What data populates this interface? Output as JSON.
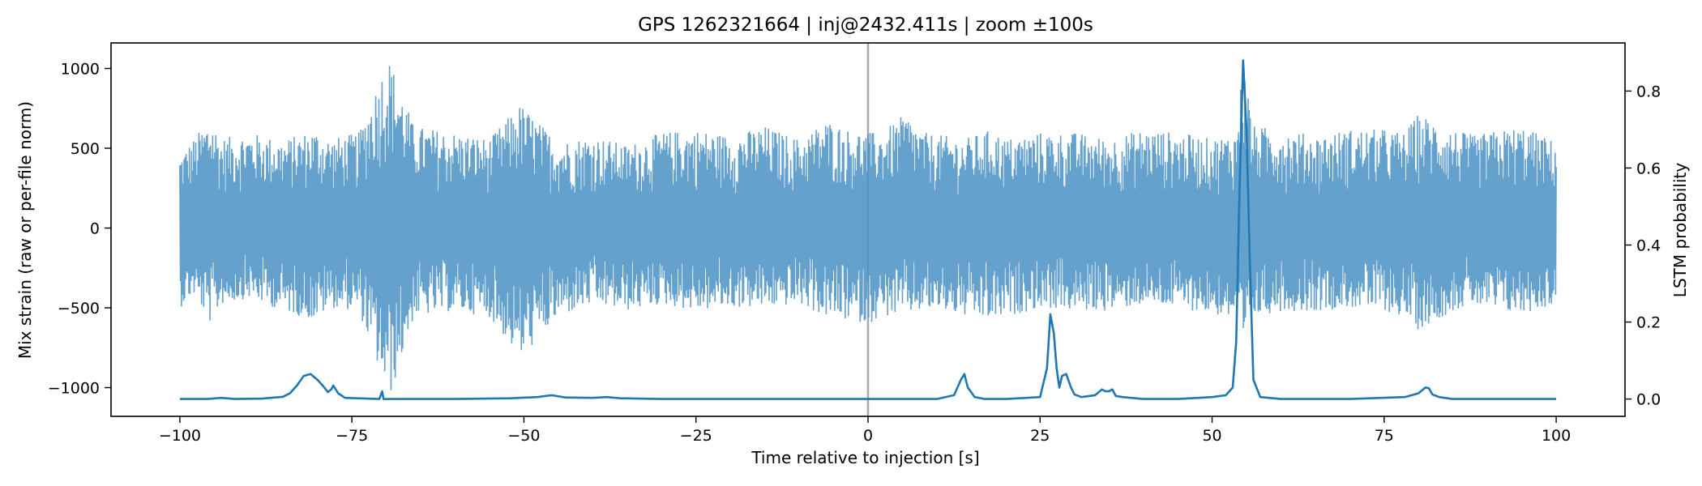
{
  "chart_data": {
    "type": "line",
    "title": "GPS 1262321664 | inj@2432.411s | zoom ±100s",
    "xlabel": "Time relative to injection [s]",
    "ylabel": "Mix strain (raw or per-file norm)",
    "y2label": "LSTM probability",
    "xlim": [
      -110,
      110
    ],
    "ylim": [
      -1180,
      1160
    ],
    "y2lim": [
      -0.045,
      0.925
    ],
    "xticks": [
      -100,
      -75,
      -50,
      -25,
      0,
      25,
      50,
      75,
      100
    ],
    "xtick_labels": [
      "−100",
      "−75",
      "−50",
      "−25",
      "0",
      "25",
      "50",
      "75",
      "100"
    ],
    "yticks": [
      -1000,
      -500,
      0,
      500,
      1000
    ],
    "ytick_labels": [
      "−1000",
      "−500",
      "0",
      "500",
      "1000"
    ],
    "y2ticks": [
      0.0,
      0.2,
      0.4,
      0.6,
      0.8
    ],
    "y2tick_labels": [
      "0.0",
      "0.2",
      "0.4",
      "0.6",
      "0.8"
    ],
    "grid": false,
    "vline": {
      "x": 0,
      "color": "#aaaaaa"
    },
    "colors": {
      "strain": "#4a90c4",
      "probability": "#1f77b4"
    },
    "series": [
      {
        "axis": "left",
        "style": "noise-envelope",
        "x": [
          -100,
          -98,
          -95.5,
          -94,
          -90,
          -85,
          -80.5,
          -78,
          -74,
          -70.5,
          -69.5,
          -66,
          -60,
          -55,
          -50.5,
          -45,
          -40,
          -35,
          -30,
          -25,
          -20,
          -15,
          -10,
          -6,
          -3,
          0,
          2,
          5.5,
          8,
          11,
          14,
          18,
          20,
          25,
          30,
          35,
          40,
          45,
          50,
          53.5,
          54.5,
          56,
          60,
          65,
          70,
          75,
          78,
          80,
          85,
          88,
          90,
          95,
          100
        ],
        "y_upper": [
          460,
          560,
          700,
          560,
          600,
          550,
          620,
          560,
          600,
          1000,
          1060,
          640,
          600,
          560,
          780,
          540,
          580,
          520,
          600,
          620,
          580,
          640,
          560,
          680,
          620,
          600,
          600,
          720,
          600,
          580,
          560,
          620,
          560,
          600,
          600,
          560,
          620,
          600,
          560,
          600,
          1060,
          640,
          620,
          580,
          620,
          620,
          600,
          720,
          620,
          580,
          600,
          640,
          540
        ],
        "y_lower": [
          -500,
          -420,
          -600,
          -480,
          -440,
          -520,
          -580,
          -500,
          -520,
          -960,
          -1070,
          -560,
          -520,
          -560,
          -820,
          -560,
          -480,
          -520,
          -480,
          -520,
          -500,
          -500,
          -480,
          -560,
          -580,
          -600,
          -560,
          -540,
          -520,
          -520,
          -560,
          -580,
          -560,
          -500,
          -520,
          -520,
          -480,
          -500,
          -540,
          -580,
          -760,
          -560,
          -520,
          -520,
          -500,
          -520,
          -560,
          -640,
          -520,
          -480,
          -520,
          -540,
          -480
        ]
      },
      {
        "axis": "right",
        "style": "line",
        "x": [
          -100,
          -96,
          -94,
          -92,
          -88,
          -85,
          -84,
          -83,
          -82,
          -81,
          -80,
          -79,
          -78.5,
          -78,
          -77.7,
          -77,
          -76,
          -71,
          -70.6,
          -70.4,
          -70.2,
          -70,
          -69.5,
          -60,
          -52,
          -48,
          -46,
          -44,
          -40,
          -38,
          -36,
          -30,
          -20,
          -10,
          0,
          10,
          12.5,
          13.5,
          14,
          14.5,
          15.5,
          17,
          20,
          25,
          26,
          26.5,
          27,
          27.4,
          27.8,
          28.2,
          28.8,
          29.5,
          30,
          31,
          33,
          34,
          34.5,
          35,
          35.5,
          36,
          37,
          40,
          45,
          48,
          50,
          52,
          53,
          53.5,
          54,
          54.5,
          55,
          55.5,
          56,
          57,
          60,
          70,
          78,
          80,
          81,
          81.5,
          82,
          83,
          85,
          90,
          95,
          100
        ],
        "y": [
          0.0,
          0.0,
          0.003,
          0.0,
          0.001,
          0.006,
          0.015,
          0.035,
          0.06,
          0.065,
          0.05,
          0.03,
          0.018,
          0.025,
          0.035,
          0.015,
          0.003,
          0.0,
          0.02,
          0.0,
          0.0,
          0.0,
          0.0,
          0.0,
          0.002,
          0.005,
          0.01,
          0.004,
          0.003,
          0.005,
          0.002,
          0.0,
          0.0,
          0.0,
          0.0,
          0.0,
          0.01,
          0.05,
          0.065,
          0.03,
          0.005,
          0.0,
          0.0,
          0.005,
          0.08,
          0.22,
          0.17,
          0.08,
          0.03,
          0.06,
          0.065,
          0.03,
          0.012,
          0.005,
          0.01,
          0.025,
          0.02,
          0.02,
          0.025,
          0.008,
          0.005,
          0.0,
          0.0,
          0.003,
          0.005,
          0.01,
          0.03,
          0.15,
          0.55,
          0.88,
          0.7,
          0.35,
          0.05,
          0.005,
          0.0,
          0.0,
          0.005,
          0.015,
          0.03,
          0.028,
          0.012,
          0.005,
          0.0,
          0.0,
          0.0,
          0.0
        ]
      }
    ]
  }
}
